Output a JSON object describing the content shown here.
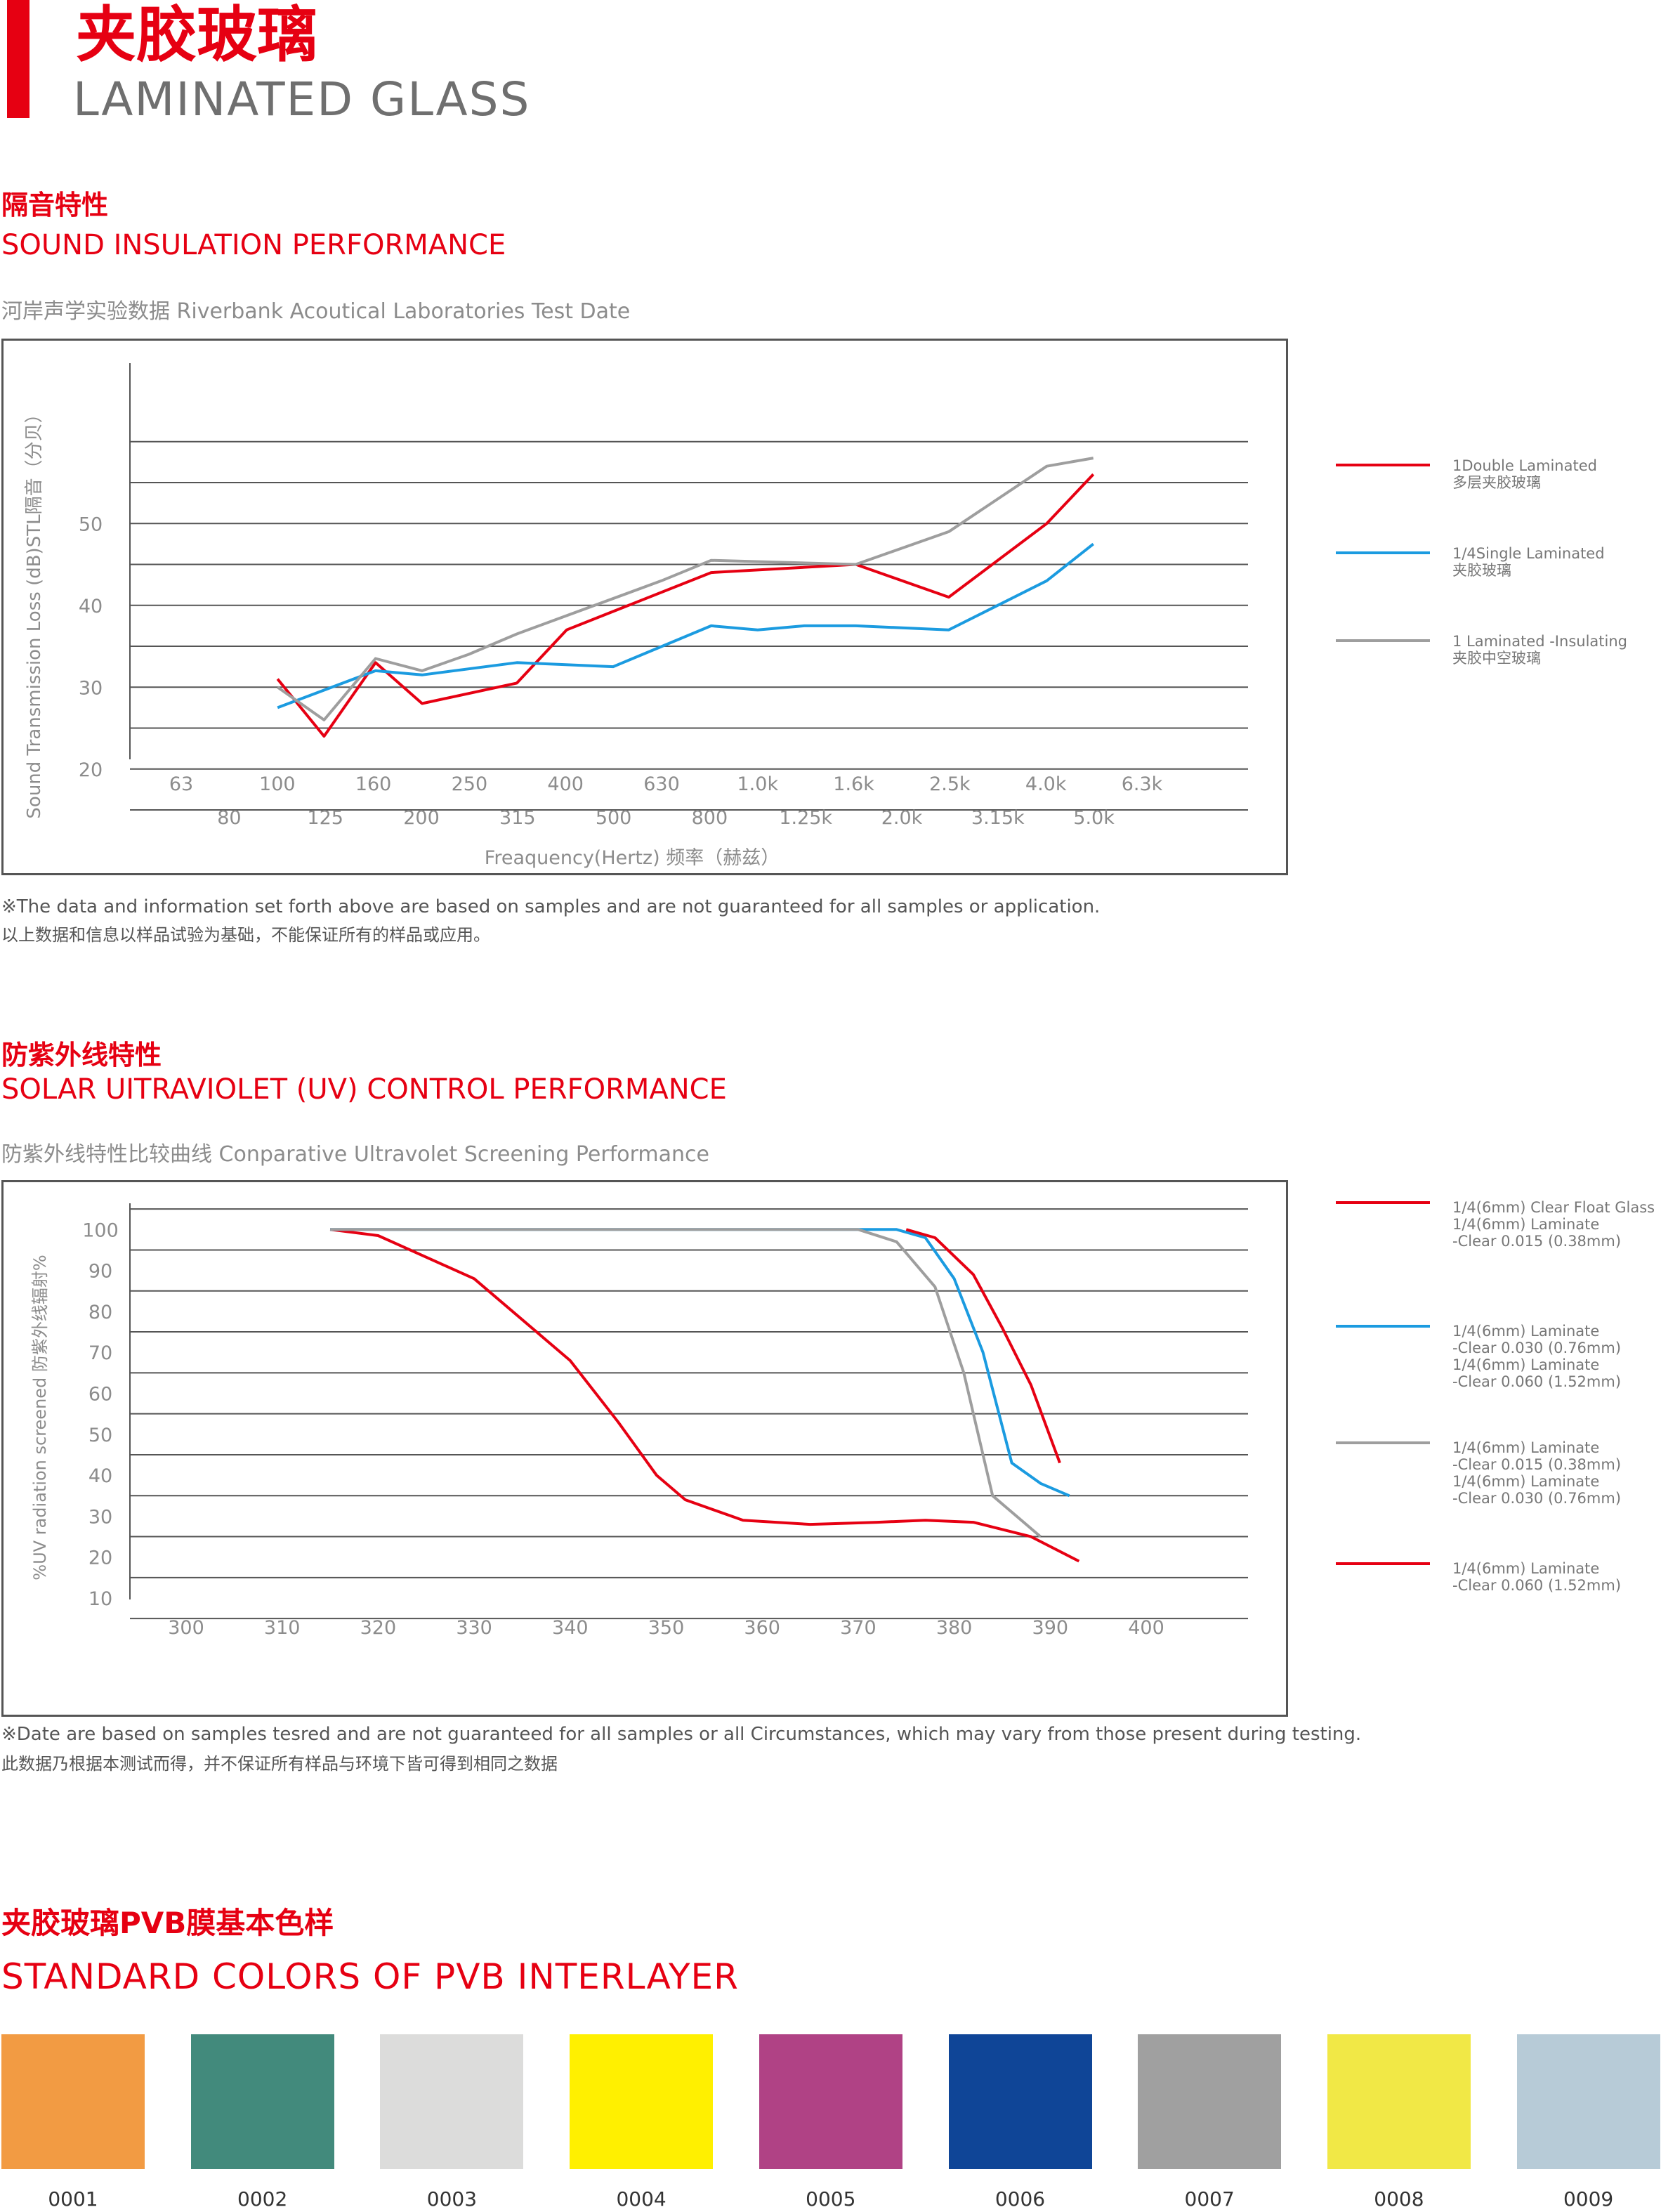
{
  "header": {
    "title_cn": "夹胶玻璃",
    "title_en": "LAMINATED GLASS",
    "accent": "#e60012"
  },
  "sound": {
    "title_cn": "隔音特性",
    "title_en": "SOUND INSULATION PERFORMANCE",
    "subtitle": "河岸声学实验数据 Riverbank Acoutical Laboratories Test Date",
    "note_en": "※The data and information set forth above are based on samples and are not guaranteed  for all samples or application.",
    "note_cn": "以上数据和信息以样品试验为基础，不能保证所有的样品或应用。",
    "legend": [
      {
        "en": "1Double Laminated",
        "cn": "多层夹胶玻璃",
        "color": "#e60012"
      },
      {
        "en": "1/4Single Laminated",
        "cn": "夹胶玻璃",
        "color": "#1b9be0"
      },
      {
        "en": "1 Laminated -Insulating",
        "cn": "夹胶中空玻璃",
        "color": "#9e9e9e"
      }
    ]
  },
  "uv": {
    "title_cn": "防紫外线特性",
    "title_en": "SOLAR UITRAVIOLET (UV) CONTROL PERFORMANCE",
    "subtitle": "防紫外线特性比较曲线 Conparative Ultravolet Screening Performance",
    "note_en": "※Date are based on samples tesred and are not guaranteed for all samples or all Circumstances, which may vary from those present during testing.",
    "note_cn": "此数据乃根据本测试而得，并不保证所有样品与环境下皆可得到相同之数据",
    "legend": [
      {
        "lines": [
          "1/4(6mm) Clear Float Glass",
          "1/4(6mm) Laminate",
          "-Clear 0.015 (0.38mm)"
        ],
        "color": "#e60012"
      },
      {
        "lines": [
          "1/4(6mm) Laminate",
          "-Clear 0.030 (0.76mm)",
          "1/4(6mm) Laminate",
          "-Clear 0.060 (1.52mm)"
        ],
        "color": "#1b9be0"
      },
      {
        "lines": [
          "1/4(6mm) Laminate",
          "-Clear 0.015 (0.38mm)",
          "1/4(6mm) Laminate",
          "-Clear 0.030 (0.76mm)"
        ],
        "color": "#9e9e9e"
      },
      {
        "lines": [
          "1/4(6mm) Laminate",
          "-Clear 0.060 (1.52mm)"
        ],
        "color": "#e60012"
      }
    ]
  },
  "pvb": {
    "title_cn": "夹胶玻璃PVB膜基本色样",
    "title_en": "STANDARD COLORS OF PVB INTERLAYER",
    "swatches": [
      {
        "code": "0001",
        "color": "#f29b43"
      },
      {
        "code": "0002",
        "color": "#428a7c"
      },
      {
        "code": "0003",
        "color": "#dcdcdb"
      },
      {
        "code": "0004",
        "color": "#fff000"
      },
      {
        "code": "0005",
        "color": "#b04285"
      },
      {
        "code": "0006",
        "color": "#0f4597"
      },
      {
        "code": "0007",
        "color": "#a0a0a0"
      },
      {
        "code": "0008",
        "color": "#f1e846"
      },
      {
        "code": "0009",
        "color": "#b7cbd7"
      }
    ]
  },
  "chart_data": [
    {
      "type": "line",
      "title": "",
      "xlabel": "Freaquency(Hertz) 频率（赫兹）",
      "ylabel": "Sound Transmission Loss (dB)STL隔音（分贝）",
      "x_ticks": [
        "63",
        "80",
        "100",
        "125",
        "160",
        "200",
        "250",
        "315",
        "400",
        "500",
        "630",
        "800",
        "1.0k",
        "1.25k",
        "1.6k",
        "2.0k",
        "2.5k",
        "3.15k",
        "4.0k",
        "5.0k",
        "6.3k"
      ],
      "y_ticks": [
        20,
        30,
        40,
        50
      ],
      "grid": true,
      "legend_position": "right",
      "series": [
        {
          "name": "1Double Laminated",
          "color": "#e60012",
          "x": [
            100,
            125,
            160,
            200,
            315,
            400,
            800,
            1600,
            2500,
            4000,
            5000
          ],
          "y": [
            31,
            24,
            33,
            28,
            30.5,
            37,
            44,
            45,
            41,
            50,
            56
          ]
        },
        {
          "name": "1/4Single Laminated",
          "color": "#1b9be0",
          "x": [
            100,
            160,
            200,
            315,
            500,
            800,
            1000,
            1250,
            1600,
            2500,
            4000,
            5000
          ],
          "y": [
            27.5,
            32,
            31.5,
            33,
            32.5,
            37.5,
            37,
            37.5,
            37.5,
            37,
            43,
            47.5
          ]
        },
        {
          "name": "1 Laminated -Insulating",
          "color": "#9e9e9e",
          "x": [
            100,
            125,
            160,
            200,
            250,
            315,
            630,
            800,
            1600,
            2500,
            4000,
            5000
          ],
          "y": [
            30,
            26,
            33.5,
            32,
            34,
            36.5,
            43,
            45.5,
            45,
            49,
            57,
            58
          ]
        }
      ]
    },
    {
      "type": "line",
      "title": "",
      "xlabel": "",
      "ylabel": "%UV radiation screened 防紫外线辐射%",
      "x_ticks": [
        300,
        310,
        320,
        330,
        340,
        350,
        360,
        370,
        380,
        390,
        400
      ],
      "y_ticks": [
        10,
        20,
        30,
        40,
        50,
        60,
        70,
        80,
        90,
        100
      ],
      "grid": true,
      "legend_position": "right",
      "series": [
        {
          "name": "1/4(6mm) Clear Float Glass",
          "color": "#e60012",
          "x": [
            315,
            320,
            330,
            340,
            345,
            349,
            352,
            358,
            365,
            372,
            377,
            382,
            388,
            393
          ],
          "y": [
            100,
            98.5,
            88,
            68,
            53,
            40,
            34,
            29,
            28,
            28.5,
            29,
            28.5,
            25,
            19
          ]
        },
        {
          "name": "1/4(6mm) Laminate -Clear 0.030 (0.76mm)",
          "color": "#1b9be0",
          "x": [
            315,
            374,
            377,
            380,
            383,
            386,
            389,
            392
          ],
          "y": [
            100,
            100,
            98,
            88,
            70,
            43,
            38,
            35
          ]
        },
        {
          "name": "1/4(6mm) Laminate -Clear 0.015 (0.38mm)",
          "color": "#9e9e9e",
          "x": [
            315,
            370,
            374,
            378,
            381,
            384,
            386,
            389
          ],
          "y": [
            100,
            100,
            97,
            86,
            65,
            35,
            31,
            25
          ]
        },
        {
          "name": "1/4(6mm) Laminate -Clear 0.060 (1.52mm)",
          "color": "#e60012",
          "x": [
            375,
            378,
            382,
            385,
            388,
            391
          ],
          "y": [
            100,
            98,
            89,
            76,
            62,
            43
          ]
        }
      ]
    }
  ]
}
